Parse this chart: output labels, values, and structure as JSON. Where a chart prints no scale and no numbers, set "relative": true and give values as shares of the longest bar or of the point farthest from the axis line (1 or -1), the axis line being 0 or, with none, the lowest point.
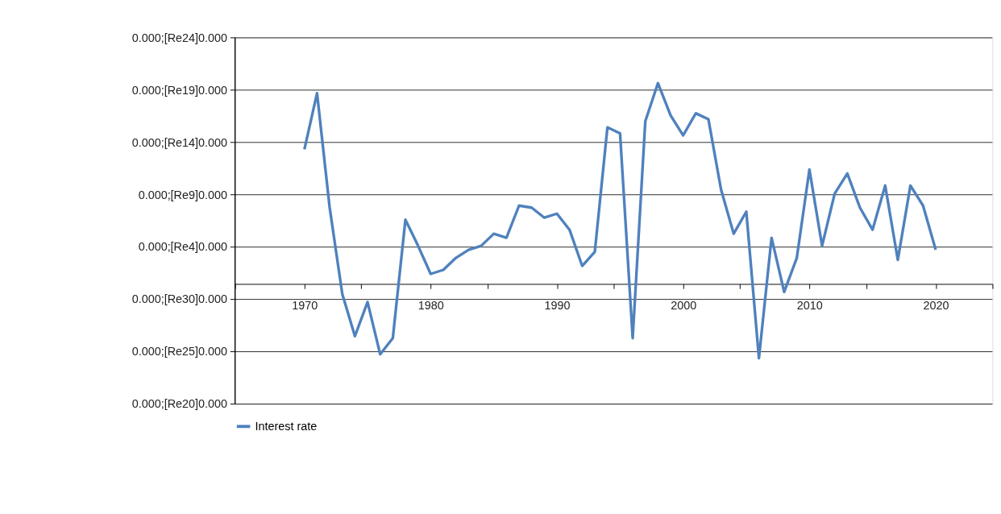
{
  "chart_data": {
    "type": "line",
    "relative": true,
    "x": [
      1970,
      1971,
      1972,
      1973,
      1974,
      1975,
      1976,
      1977,
      1978,
      1979,
      1980,
      1981,
      1982,
      1983,
      1984,
      1985,
      1986,
      1987,
      1988,
      1989,
      1990,
      1991,
      1992,
      1993,
      1994,
      1995,
      1996,
      1997,
      1998,
      1999,
      2000,
      2001,
      2002,
      2003,
      2004,
      2005,
      2006,
      2007,
      2008,
      2009,
      2010,
      2011,
      2012,
      2013,
      2014,
      2015,
      2016,
      2017,
      2018,
      2019,
      2020
    ],
    "series": [
      {
        "name": "Interest rate",
        "color": "#4f81bd",
        "values": [
          0.67,
          0.95,
          0.38,
          -0.05,
          -0.26,
          -0.09,
          -0.35,
          -0.27,
          0.32,
          0.19,
          0.05,
          0.07,
          0.13,
          0.17,
          0.19,
          0.25,
          0.23,
          0.39,
          0.38,
          0.33,
          0.35,
          0.27,
          0.09,
          0.16,
          0.78,
          0.75,
          -0.27,
          0.81,
          1,
          0.84,
          0.74,
          0.85,
          0.82,
          0.47,
          0.25,
          0.36,
          -0.37,
          0.23,
          -0.04,
          0.13,
          0.57,
          0.19,
          0.45,
          0.55,
          0.38,
          0.27,
          0.49,
          0.12,
          0.49,
          0.39,
          0.17
        ]
      }
    ],
    "xlim": [
      1964.5,
      2024.5
    ],
    "xticks": [
      {
        "value": 1964.5,
        "label": null
      },
      {
        "value": 1970,
        "label": "1970"
      },
      {
        "value": 1974.5,
        "label": null
      },
      {
        "value": 1980,
        "label": "1980"
      },
      {
        "value": 1984.5,
        "label": null
      },
      {
        "value": 1990,
        "label": "1990"
      },
      {
        "value": 1994.5,
        "label": null
      },
      {
        "value": 2000,
        "label": "2000"
      },
      {
        "value": 2004.5,
        "label": null
      },
      {
        "value": 2010,
        "label": "2010"
      },
      {
        "value": 2014.5,
        "label": null
      },
      {
        "value": 2020,
        "label": "2020"
      },
      {
        "value": 2024.5,
        "label": null
      }
    ],
    "annotations": [
      "0.000;[Re24]0.000",
      "0.000;[Re19]0.000",
      "0.000;[Re14]0.000",
      "0.000;[Re9]0.000",
      "0.000;[Re4]0.000",
      "0.000;[Re30]0.000",
      "0.000;[Re25]0.000",
      "0.000;[Re20]0.000"
    ],
    "grid": "y",
    "legend": "bottom"
  }
}
